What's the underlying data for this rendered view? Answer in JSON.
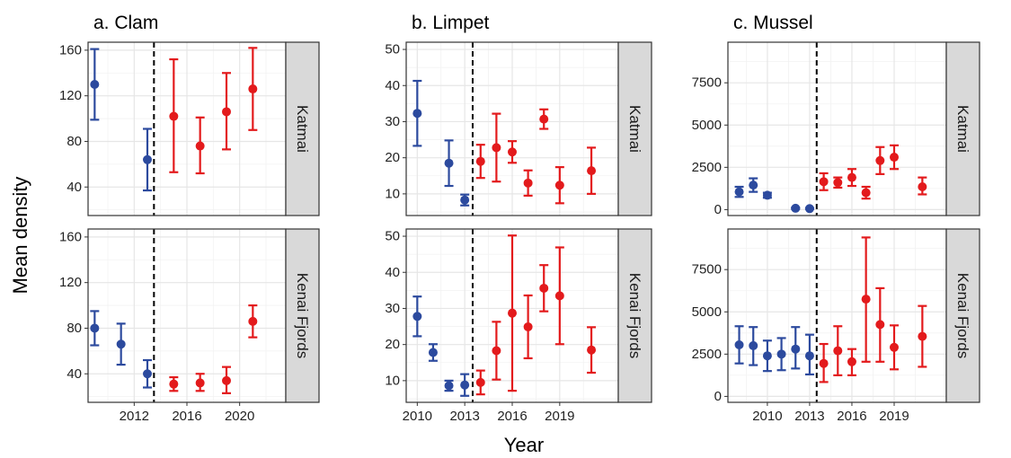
{
  "chart_data": {
    "type": "scatter",
    "xlabel": "Year",
    "ylabel": "Mean density",
    "colors": {
      "before": "#2c4a9e",
      "after": "#e31a1c"
    },
    "rows": [
      "Katmai",
      "Kenai Fjords"
    ],
    "panels": [
      {
        "title": "a. Clam",
        "xlim": [
          2008.5,
          2023.5
        ],
        "xticks": [
          2012,
          2016,
          2020
        ],
        "xtick_labels": [
          "2012",
          "2016",
          "2020"
        ],
        "ylim": [
          15,
          167
        ],
        "yticks": [
          40,
          80,
          120,
          160
        ],
        "ytick_labels": [
          "40",
          "80",
          "120",
          "160"
        ],
        "break_year": 2013.5,
        "series": [
          {
            "name": "Katmai",
            "points": [
              {
                "x": 2009,
                "y": 130,
                "lo": 99,
                "hi": 161
              },
              {
                "x": 2013,
                "y": 64,
                "lo": 37,
                "hi": 91
              },
              {
                "x": 2015,
                "y": 102,
                "lo": 53,
                "hi": 152
              },
              {
                "x": 2017,
                "y": 76,
                "lo": 52,
                "hi": 101
              },
              {
                "x": 2019,
                "y": 106,
                "lo": 73,
                "hi": 140
              },
              {
                "x": 2021,
                "y": 126,
                "lo": 90,
                "hi": 162
              }
            ]
          },
          {
            "name": "Kenai Fjords",
            "points": [
              {
                "x": 2009,
                "y": 80,
                "lo": 65,
                "hi": 95
              },
              {
                "x": 2011,
                "y": 66,
                "lo": 48,
                "hi": 84
              },
              {
                "x": 2013,
                "y": 40,
                "lo": 28,
                "hi": 52
              },
              {
                "x": 2015,
                "y": 31,
                "lo": 25,
                "hi": 37
              },
              {
                "x": 2017,
                "y": 32,
                "lo": 25,
                "hi": 40
              },
              {
                "x": 2019,
                "y": 34,
                "lo": 23,
                "hi": 46
              },
              {
                "x": 2021,
                "y": 86,
                "lo": 72,
                "hi": 100
              }
            ]
          }
        ]
      },
      {
        "title": "b. Limpet",
        "xlim": [
          2009.3,
          2022.7
        ],
        "xticks": [
          2010,
          2013,
          2016,
          2019
        ],
        "xtick_labels": [
          "2010",
          "2013",
          "2016",
          "2019"
        ],
        "ylim": [
          4,
          52
        ],
        "yticks": [
          10,
          20,
          30,
          40,
          50
        ],
        "ytick_labels": [
          "10",
          "20",
          "30",
          "40",
          "50"
        ],
        "break_year": 2013.5,
        "series": [
          {
            "name": "Katmai",
            "points": [
              {
                "x": 2010,
                "y": 32.3,
                "lo": 23.3,
                "hi": 41.3
              },
              {
                "x": 2012,
                "y": 18.5,
                "lo": 12.2,
                "hi": 24.8
              },
              {
                "x": 2013,
                "y": 8.3,
                "lo": 6.8,
                "hi": 9.8
              },
              {
                "x": 2014,
                "y": 19.0,
                "lo": 14.4,
                "hi": 23.6
              },
              {
                "x": 2015,
                "y": 22.8,
                "lo": 13.4,
                "hi": 32.2
              },
              {
                "x": 2016,
                "y": 21.6,
                "lo": 18.6,
                "hi": 24.6
              },
              {
                "x": 2017,
                "y": 13.0,
                "lo": 9.5,
                "hi": 16.5
              },
              {
                "x": 2018,
                "y": 30.7,
                "lo": 28.0,
                "hi": 33.4
              },
              {
                "x": 2019,
                "y": 12.4,
                "lo": 7.4,
                "hi": 17.4
              },
              {
                "x": 2021,
                "y": 16.4,
                "lo": 10.0,
                "hi": 22.8
              }
            ]
          },
          {
            "name": "Kenai Fjords",
            "points": [
              {
                "x": 2010,
                "y": 27.8,
                "lo": 22.3,
                "hi": 33.3
              },
              {
                "x": 2011,
                "y": 17.8,
                "lo": 15.5,
                "hi": 20.1
              },
              {
                "x": 2012,
                "y": 8.6,
                "lo": 7.2,
                "hi": 10.0
              },
              {
                "x": 2013,
                "y": 8.8,
                "lo": 5.8,
                "hi": 11.8
              },
              {
                "x": 2014,
                "y": 9.5,
                "lo": 6.2,
                "hi": 12.8
              },
              {
                "x": 2015,
                "y": 18.3,
                "lo": 10.3,
                "hi": 26.3
              },
              {
                "x": 2016,
                "y": 28.7,
                "lo": 7.2,
                "hi": 50.2
              },
              {
                "x": 2017,
                "y": 24.9,
                "lo": 16.2,
                "hi": 33.6
              },
              {
                "x": 2018,
                "y": 35.6,
                "lo": 29.2,
                "hi": 42.0
              },
              {
                "x": 2019,
                "y": 33.5,
                "lo": 20.1,
                "hi": 46.9
              },
              {
                "x": 2021,
                "y": 18.5,
                "lo": 12.2,
                "hi": 24.8
              }
            ]
          }
        ]
      },
      {
        "title": "c. Mussel",
        "xlim": [
          2007.2,
          2022.7
        ],
        "xticks": [
          2010,
          2013,
          2016,
          2019
        ],
        "xtick_labels": [
          "2010",
          "2013",
          "2016",
          "2019"
        ],
        "ylim": [
          -350,
          9900
        ],
        "yticks": [
          0,
          2500,
          5000,
          7500
        ],
        "ytick_labels": [
          "0",
          "2500",
          "5000",
          "7500"
        ],
        "break_year": 2013.5,
        "series": [
          {
            "name": "Katmai",
            "points": [
              {
                "x": 2008,
                "y": 1050,
                "lo": 750,
                "hi": 1350
              },
              {
                "x": 2009,
                "y": 1450,
                "lo": 1050,
                "hi": 1850
              },
              {
                "x": 2010,
                "y": 850,
                "lo": 700,
                "hi": 1000
              },
              {
                "x": 2012,
                "y": 80,
                "lo": 40,
                "hi": 120
              },
              {
                "x": 2013,
                "y": 60,
                "lo": 30,
                "hi": 90
              },
              {
                "x": 2014,
                "y": 1650,
                "lo": 1150,
                "hi": 2150
              },
              {
                "x": 2015,
                "y": 1600,
                "lo": 1300,
                "hi": 1900
              },
              {
                "x": 2016,
                "y": 1900,
                "lo": 1400,
                "hi": 2400
              },
              {
                "x": 2017,
                "y": 1000,
                "lo": 650,
                "hi": 1350
              },
              {
                "x": 2018,
                "y": 2900,
                "lo": 2100,
                "hi": 3700
              },
              {
                "x": 2019,
                "y": 3100,
                "lo": 2400,
                "hi": 3800
              },
              {
                "x": 2021,
                "y": 1350,
                "lo": 900,
                "hi": 1900
              }
            ]
          },
          {
            "name": "Kenai Fjords",
            "points": [
              {
                "x": 2008,
                "y": 3050,
                "lo": 1950,
                "hi": 4150
              },
              {
                "x": 2009,
                "y": 3000,
                "lo": 1850,
                "hi": 4100
              },
              {
                "x": 2010,
                "y": 2400,
                "lo": 1500,
                "hi": 3300
              },
              {
                "x": 2011,
                "y": 2500,
                "lo": 1550,
                "hi": 3450
              },
              {
                "x": 2012,
                "y": 2800,
                "lo": 1650,
                "hi": 4100
              },
              {
                "x": 2013,
                "y": 2400,
                "lo": 1300,
                "hi": 3650
              },
              {
                "x": 2014,
                "y": 1950,
                "lo": 850,
                "hi": 3100
              },
              {
                "x": 2015,
                "y": 2700,
                "lo": 1250,
                "hi": 4150
              },
              {
                "x": 2016,
                "y": 2050,
                "lo": 1250,
                "hi": 2800
              },
              {
                "x": 2017,
                "y": 5750,
                "lo": 2050,
                "hi": 9400
              },
              {
                "x": 2018,
                "y": 4250,
                "lo": 2050,
                "hi": 6400
              },
              {
                "x": 2019,
                "y": 2900,
                "lo": 1600,
                "hi": 4200
              },
              {
                "x": 2021,
                "y": 3550,
                "lo": 1750,
                "hi": 5350
              }
            ]
          }
        ]
      }
    ]
  }
}
